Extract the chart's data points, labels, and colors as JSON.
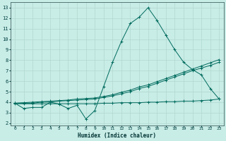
{
  "xlabel": "Humidex (Indice chaleur)",
  "bg_color": "#c8ece6",
  "grid_color": "#b0d8d0",
  "line_color": "#006b5e",
  "xlim": [
    -0.5,
    23.5
  ],
  "ylim": [
    1.8,
    13.5
  ],
  "xticks": [
    0,
    1,
    2,
    3,
    4,
    5,
    6,
    7,
    8,
    9,
    10,
    11,
    12,
    13,
    14,
    15,
    16,
    17,
    18,
    19,
    20,
    21,
    22,
    23
  ],
  "yticks": [
    2,
    3,
    4,
    5,
    6,
    7,
    8,
    9,
    10,
    11,
    12,
    13
  ],
  "series1_x": [
    0,
    1,
    2,
    3,
    4,
    5,
    6,
    7,
    8,
    9,
    10,
    11,
    12,
    13,
    14,
    15,
    16,
    17,
    18,
    19,
    20,
    21,
    22,
    23
  ],
  "series1_y": [
    3.9,
    3.4,
    3.5,
    3.5,
    4.0,
    3.8,
    3.4,
    3.7,
    2.4,
    3.2,
    5.5,
    7.8,
    9.8,
    11.5,
    12.1,
    13.0,
    11.8,
    10.4,
    9.0,
    7.8,
    7.1,
    6.6,
    5.3,
    4.3
  ],
  "series2_x": [
    0,
    1,
    2,
    3,
    4,
    5,
    6,
    7,
    8,
    9,
    10,
    11,
    12,
    13,
    14,
    15,
    16,
    17,
    18,
    19,
    20,
    21,
    22,
    23
  ],
  "series2_y": [
    3.9,
    3.9,
    3.9,
    4.0,
    4.0,
    4.1,
    4.15,
    4.2,
    4.25,
    4.3,
    4.45,
    4.6,
    4.8,
    5.0,
    5.3,
    5.5,
    5.8,
    6.1,
    6.4,
    6.7,
    7.0,
    7.25,
    7.5,
    7.8
  ],
  "series3_x": [
    0,
    1,
    2,
    3,
    4,
    5,
    6,
    7,
    8,
    9,
    10,
    11,
    12,
    13,
    14,
    15,
    16,
    17,
    18,
    19,
    20,
    21,
    22,
    23
  ],
  "series3_y": [
    3.9,
    3.95,
    4.0,
    4.05,
    4.1,
    4.15,
    4.2,
    4.3,
    4.35,
    4.4,
    4.55,
    4.7,
    4.95,
    5.15,
    5.45,
    5.65,
    5.95,
    6.25,
    6.55,
    6.85,
    7.15,
    7.45,
    7.75,
    8.05
  ],
  "series4_x": [
    0,
    1,
    2,
    3,
    4,
    5,
    6,
    7,
    8,
    9,
    10,
    11,
    12,
    13,
    14,
    15,
    16,
    17,
    18,
    19,
    20,
    21,
    22,
    23
  ],
  "series4_y": [
    3.85,
    3.85,
    3.85,
    3.85,
    3.85,
    3.85,
    3.85,
    3.85,
    3.85,
    3.85,
    3.9,
    3.9,
    3.95,
    3.95,
    3.95,
    4.0,
    4.0,
    4.05,
    4.05,
    4.1,
    4.1,
    4.15,
    4.2,
    4.3
  ]
}
